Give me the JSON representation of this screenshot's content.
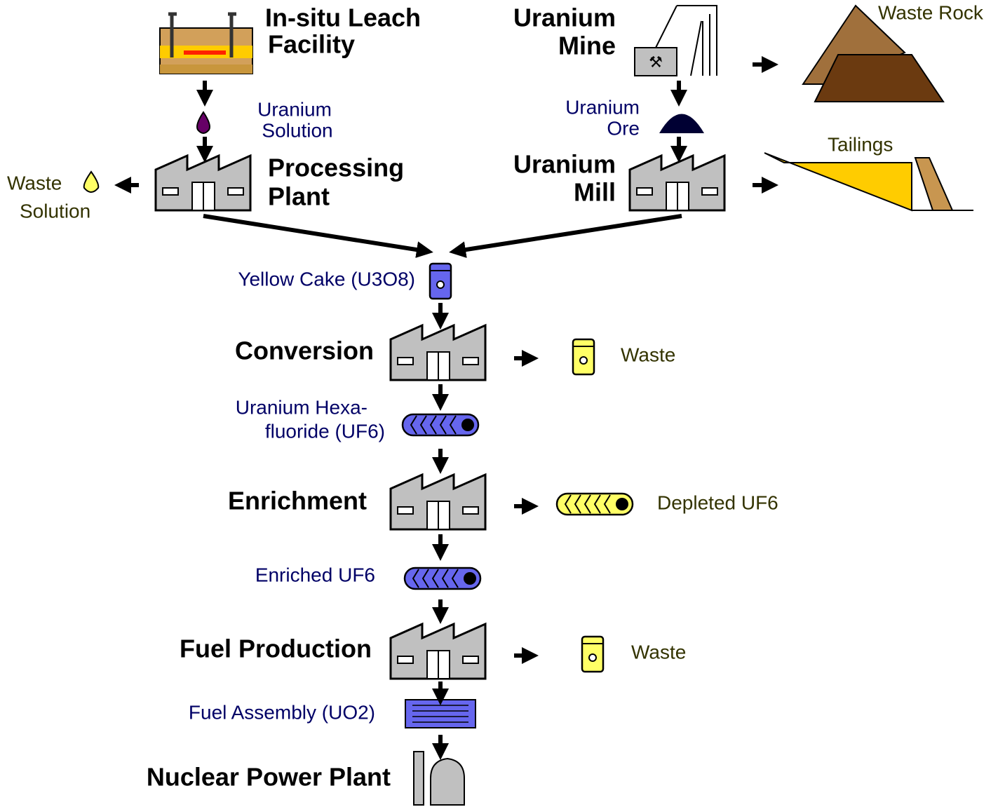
{
  "nodes": [
    {
      "label": [
        "In-situ Leach",
        "Facility"
      ]
    },
    {
      "label": [
        "Uranium",
        "Mine"
      ]
    },
    {
      "label": [
        "Waste Rock"
      ]
    },
    {
      "label": [
        "Uranium",
        "Solution"
      ]
    },
    {
      "label": [
        "Uranium",
        "Ore"
      ]
    },
    {
      "label": [
        "Processing",
        "Plant"
      ]
    },
    {
      "label": [
        "Uranium",
        "Mill"
      ]
    },
    {
      "label": [
        "Tailings"
      ]
    },
    {
      "label": [
        "Waste",
        "Solution"
      ]
    },
    {
      "label": [
        "Yellow Cake (U3O8)"
      ]
    },
    {
      "label": [
        "Conversion"
      ]
    },
    {
      "label": [
        "Waste"
      ]
    },
    {
      "label": [
        "Uranium Hexa-",
        "fluoride (UF6)"
      ]
    },
    {
      "label": [
        "Enrichment"
      ]
    },
    {
      "label": [
        "Depleted UF6"
      ]
    },
    {
      "label": [
        "Enriched UF6"
      ]
    },
    {
      "label": [
        "Fuel Production"
      ]
    },
    {
      "label": [
        "Waste"
      ]
    },
    {
      "label": [
        "Fuel Assembly (UO2)"
      ]
    },
    {
      "label": [
        "Nuclear Power Plant"
      ]
    }
  ]
}
